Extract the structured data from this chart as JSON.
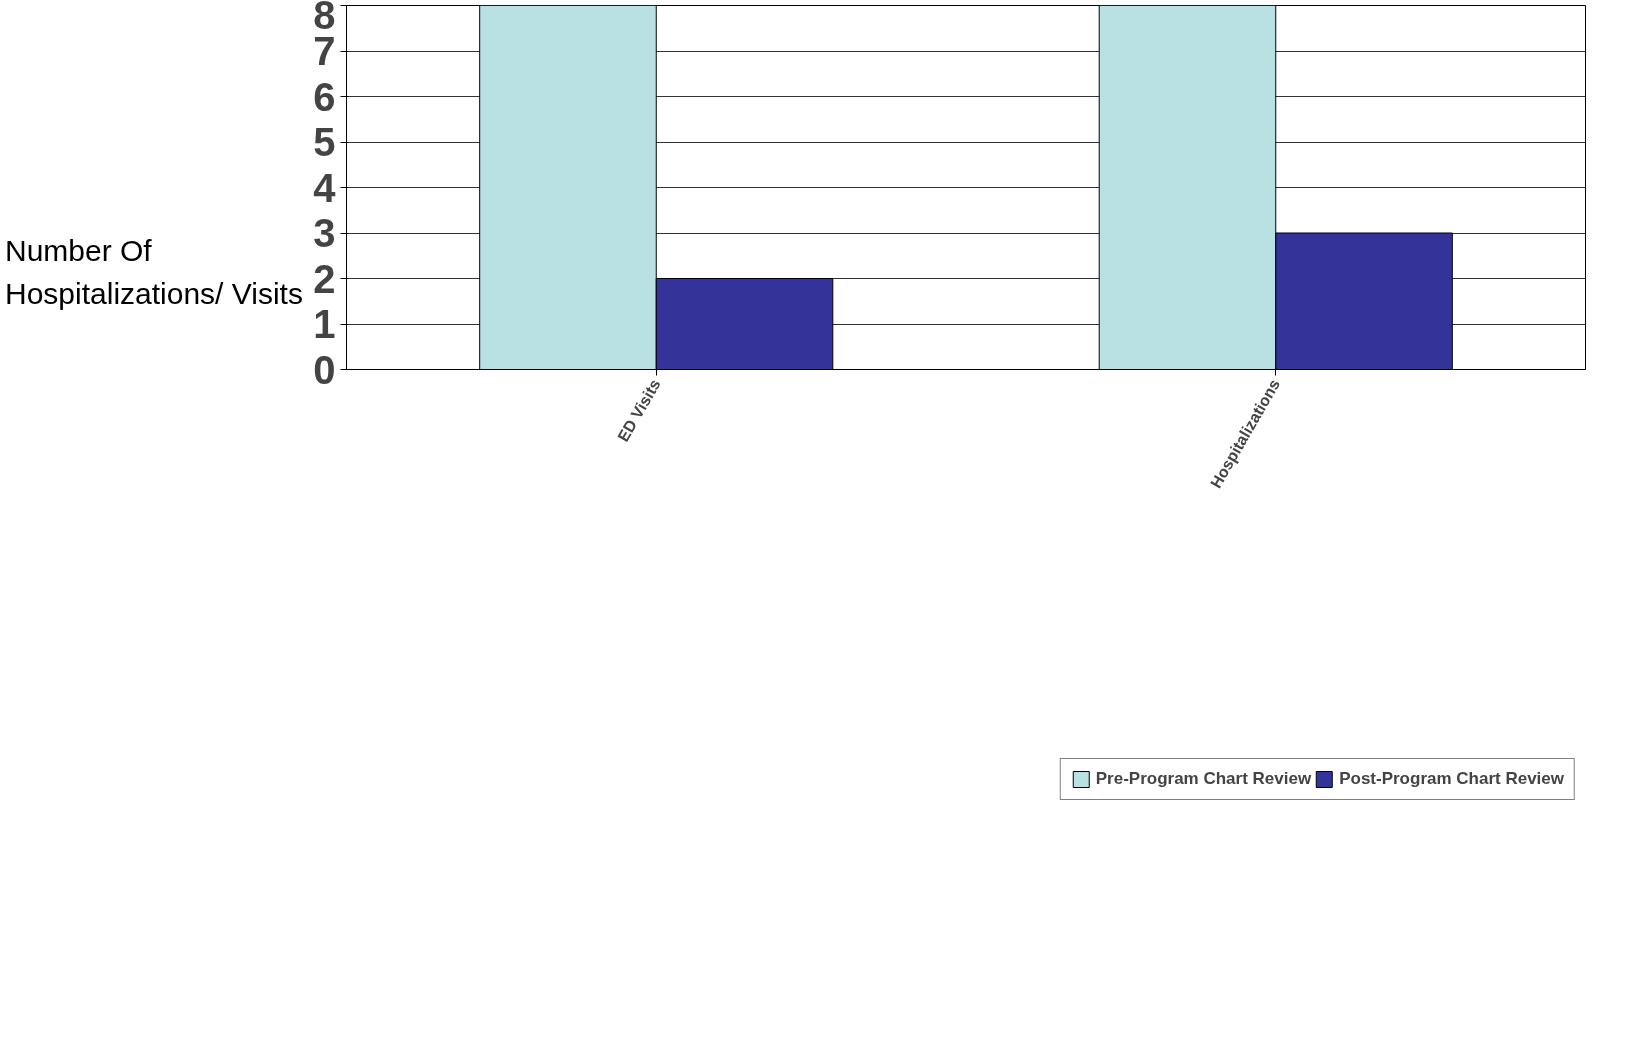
{
  "chart_data": {
    "type": "bar",
    "ylabel": "Number Of Hospitalizations/ Visits",
    "categories": [
      "ED Visits",
      "Hospitalizations"
    ],
    "series": [
      {
        "name": "Pre-Program Chart Review",
        "color": "#b9e0e3",
        "values": [
          8,
          8
        ]
      },
      {
        "name": "Post-Program Chart Review",
        "color": "#333399",
        "values": [
          2,
          3
        ]
      }
    ],
    "ylim": [
      0,
      8
    ],
    "yticks": [
      0,
      1,
      2,
      3,
      4,
      5,
      6,
      7,
      8
    ],
    "grid": "y",
    "legend": "bottom"
  }
}
